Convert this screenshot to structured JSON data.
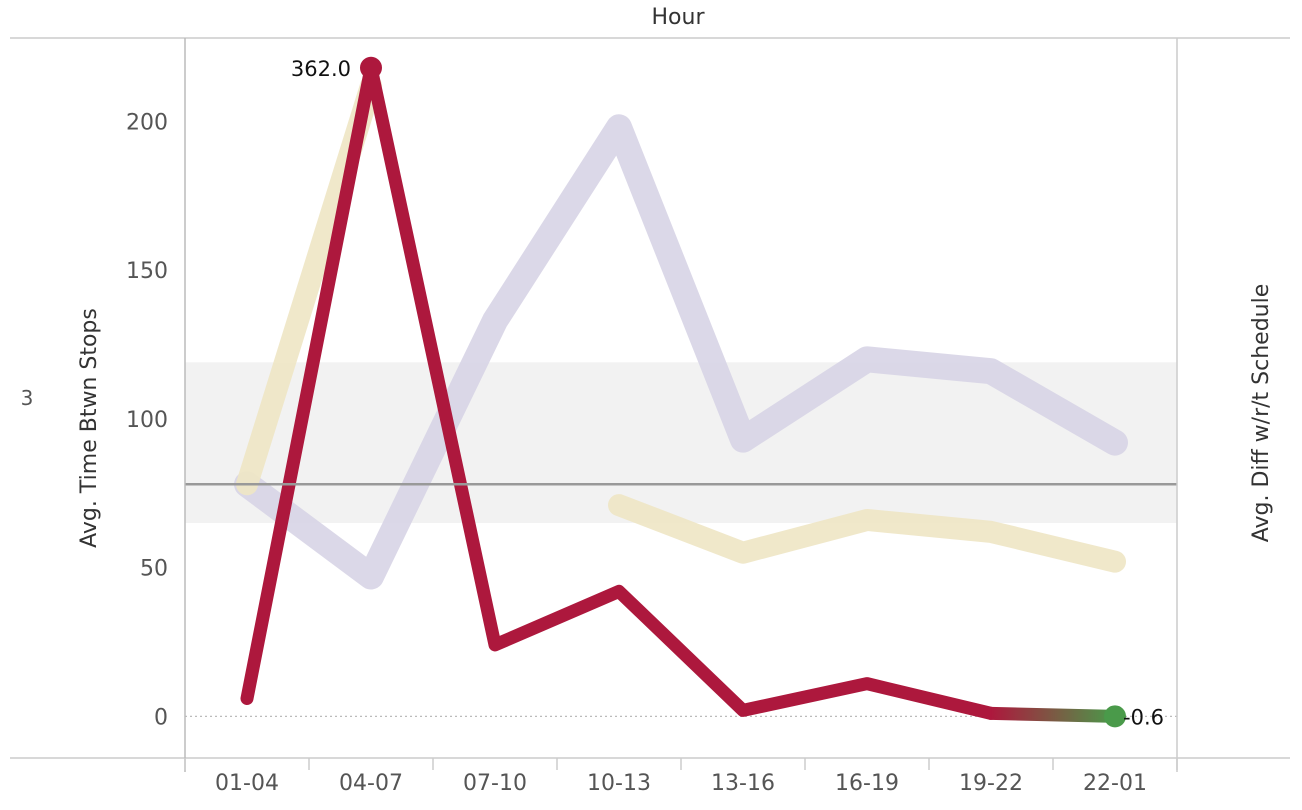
{
  "chart_data": {
    "type": "line",
    "top_axis_title": "Hour",
    "ylabel": "Avg. Time Btwn Stops",
    "y2label": "Avg. Diff w/r/t Schedule",
    "side_value": "3",
    "categories": [
      "01-04",
      "04-07",
      "07-10",
      "10-13",
      "13-16",
      "16-19",
      "19-22",
      "22-01"
    ],
    "ylim": [
      -14,
      228
    ],
    "yticks": [
      0,
      50,
      100,
      150,
      200
    ],
    "yticks_labels": [
      "0",
      "50",
      "100",
      "150",
      "200"
    ],
    "reference_band": [
      65,
      119
    ],
    "reference_line": 78,
    "series": [
      {
        "role": "lavender",
        "color": "#d8d5e6",
        "values": [
          78,
          47,
          133,
          198,
          93,
          120,
          116,
          92
        ]
      },
      {
        "role": "beige",
        "color": "#efe6c5",
        "values": [
          78,
          212,
          null,
          71,
          55,
          66,
          62,
          52
        ]
      },
      {
        "role": "main",
        "color": "#ad183d",
        "values": [
          6,
          218,
          24,
          42,
          2,
          11,
          1,
          0
        ]
      }
    ],
    "annotations": [
      {
        "index": 1,
        "text": "362.0"
      },
      {
        "index": 7,
        "text": "-0.6"
      }
    ],
    "highlight_color": "#4a9a4a"
  }
}
